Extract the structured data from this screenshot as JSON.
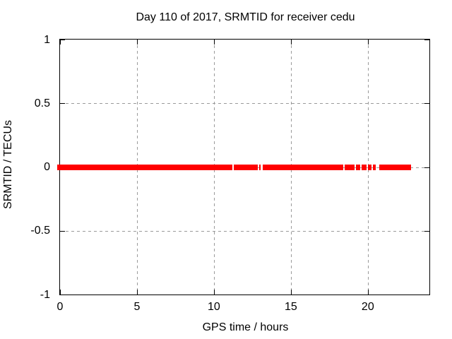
{
  "chart_data": {
    "type": "scatter",
    "title": "Day 110 of 2017, SRMTID for receiver cedu",
    "xlabel": "GPS time / hours",
    "ylabel": "SRMTID / TECUs",
    "xlim": [
      0,
      24
    ],
    "ylim": [
      -1,
      1
    ],
    "xticks": [
      0,
      5,
      10,
      15,
      20
    ],
    "yticks": [
      1,
      0.5,
      0,
      -0.5,
      -1
    ],
    "grid": true,
    "legend_position": "none",
    "background_color": "#ffffff",
    "axis_color": "#000000",
    "grid_color": "#9a9a9a",
    "series": [
      {
        "name": "SRMTID",
        "color": "#ff0000",
        "marker": "point",
        "y_value": 0,
        "segments_hours": [
          [
            -0.2,
            11.2
          ],
          [
            11.3,
            12.85
          ],
          [
            12.95,
            13.05
          ],
          [
            13.15,
            18.4
          ],
          [
            18.5,
            19.15
          ],
          [
            19.25,
            19.5
          ],
          [
            19.6,
            19.9
          ],
          [
            20.0,
            20.25
          ],
          [
            20.35,
            20.5
          ],
          [
            20.75,
            22.8
          ]
        ]
      }
    ]
  }
}
